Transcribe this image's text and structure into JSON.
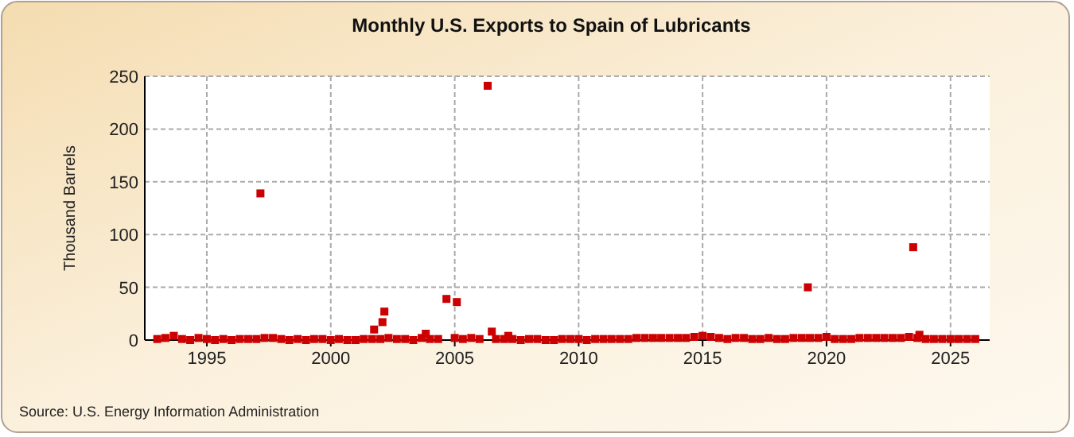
{
  "chart_data": {
    "type": "scatter",
    "title": "Monthly U.S. Exports to Spain of Lubricants",
    "ylabel": "Thousand Barrels",
    "annotations": [
      "Source: U.S. Energy Information Administration"
    ],
    "x": [
      "1993-01",
      "1993-05",
      "1993-09",
      "1994-01",
      "1994-05",
      "1994-09",
      "1995-01",
      "1995-05",
      "1995-09",
      "1996-01",
      "1996-05",
      "1996-09",
      "1997-01",
      "1997-03",
      "1997-05",
      "1997-09",
      "1998-01",
      "1998-05",
      "1998-09",
      "1999-01",
      "1999-05",
      "1999-09",
      "2000-01",
      "2000-05",
      "2000-09",
      "2001-01",
      "2001-05",
      "2001-09",
      "2001-10",
      "2002-01",
      "2002-02",
      "2002-03",
      "2002-05",
      "2002-09",
      "2003-01",
      "2003-05",
      "2003-09",
      "2003-11",
      "2004-01",
      "2004-05",
      "2004-09",
      "2005-01",
      "2005-02",
      "2005-05",
      "2005-09",
      "2006-01",
      "2006-05",
      "2006-07",
      "2006-09",
      "2007-01",
      "2007-03",
      "2007-05",
      "2007-09",
      "2008-01",
      "2008-05",
      "2008-09",
      "2009-01",
      "2009-05",
      "2009-09",
      "2010-01",
      "2010-05",
      "2010-09",
      "2011-01",
      "2011-05",
      "2011-09",
      "2012-01",
      "2012-05",
      "2012-09",
      "2013-01",
      "2013-05",
      "2013-09",
      "2014-01",
      "2014-05",
      "2014-09",
      "2015-01",
      "2015-05",
      "2015-09",
      "2016-01",
      "2016-05",
      "2016-09",
      "2017-01",
      "2017-05",
      "2017-09",
      "2018-01",
      "2018-05",
      "2018-09",
      "2019-01",
      "2019-04",
      "2019-05",
      "2019-09",
      "2020-01",
      "2020-05",
      "2020-09",
      "2021-01",
      "2021-05",
      "2021-09",
      "2022-01",
      "2022-05",
      "2022-09",
      "2023-01",
      "2023-05",
      "2023-07",
      "2023-09",
      "2023-10",
      "2024-01",
      "2024-05",
      "2024-09",
      "2025-01",
      "2025-05",
      "2025-09",
      "2026-01"
    ],
    "series": [
      {
        "color": "#cc0000",
        "values": [
          1,
          2,
          4,
          1,
          0,
          2,
          1,
          0,
          1,
          0,
          1,
          1,
          1,
          139,
          2,
          2,
          1,
          0,
          1,
          0,
          1,
          1,
          0,
          1,
          0,
          0,
          1,
          1,
          10,
          1,
          17,
          27,
          2,
          1,
          1,
          0,
          2,
          6,
          1,
          1,
          39,
          2,
          36,
          1,
          2,
          1,
          241,
          8,
          1,
          1,
          4,
          1,
          0,
          1,
          1,
          0,
          0,
          1,
          1,
          1,
          0,
          1,
          1,
          1,
          1,
          1,
          2,
          2,
          2,
          2,
          2,
          2,
          2,
          3,
          4,
          3,
          2,
          1,
          2,
          2,
          1,
          1,
          2,
          1,
          1,
          2,
          2,
          50,
          2,
          2,
          3,
          1,
          1,
          1,
          2,
          2,
          2,
          2,
          2,
          2,
          3,
          88,
          2,
          5,
          1,
          1,
          1,
          1,
          1,
          1,
          1
        ]
      }
    ],
    "xlim": [
      "1992-07",
      "2026-08"
    ],
    "xticks": [
      "1995",
      "2000",
      "2005",
      "2010",
      "2015",
      "2020",
      "2025"
    ],
    "ylim": [
      0,
      250
    ],
    "yticks": [
      0,
      50,
      100,
      150,
      200,
      250
    ],
    "grid": true,
    "marker": "square"
  }
}
